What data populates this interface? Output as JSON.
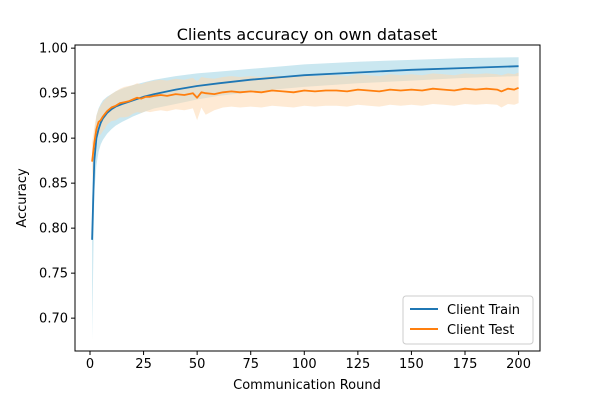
{
  "chart_data": {
    "type": "line",
    "title": "Clients accuracy on own dataset",
    "xlabel": "Communication Round",
    "ylabel": "Accuracy",
    "xlim": [
      -7,
      210
    ],
    "ylim": [
      0.6635,
      1.0035
    ],
    "xticks": [
      0,
      25,
      50,
      75,
      100,
      125,
      150,
      175,
      200
    ],
    "yticks": [
      0.7,
      0.75,
      0.8,
      0.85,
      0.9,
      0.95,
      1.0
    ],
    "ytick_labels": [
      "0.70",
      "0.75",
      "0.80",
      "0.85",
      "0.90",
      "0.95",
      "1.00"
    ],
    "grid": false,
    "legend_position": "lower-right",
    "series": [
      {
        "name": "Client Train",
        "color": "#1f77b4",
        "band_color": "#9fd4e4",
        "x": [
          1,
          2,
          3,
          4,
          5,
          6,
          8,
          10,
          12,
          15,
          20,
          25,
          30,
          40,
          50,
          60,
          75,
          90,
          100,
          125,
          150,
          175,
          200
        ],
        "y": [
          0.787,
          0.875,
          0.9,
          0.91,
          0.917,
          0.922,
          0.928,
          0.932,
          0.935,
          0.938,
          0.942,
          0.946,
          0.949,
          0.954,
          0.958,
          0.961,
          0.965,
          0.968,
          0.97,
          0.973,
          0.976,
          0.978,
          0.98
        ],
        "band_upper": [
          0.83,
          0.905,
          0.925,
          0.933,
          0.938,
          0.942,
          0.946,
          0.949,
          0.952,
          0.955,
          0.959,
          0.962,
          0.965,
          0.969,
          0.972,
          0.974,
          0.977,
          0.98,
          0.982,
          0.985,
          0.987,
          0.989,
          0.99
        ],
        "band_lower": [
          0.676,
          0.84,
          0.87,
          0.885,
          0.893,
          0.898,
          0.905,
          0.91,
          0.914,
          0.918,
          0.924,
          0.929,
          0.933,
          0.938,
          0.943,
          0.947,
          0.951,
          0.955,
          0.957,
          0.961,
          0.964,
          0.967,
          0.969
        ]
      },
      {
        "name": "Client Test",
        "color": "#ff7f0e",
        "band_color": "#fdd9b0",
        "x": [
          1,
          2,
          3,
          4,
          5,
          6,
          7,
          8,
          10,
          12,
          14,
          16,
          18,
          20,
          22,
          24,
          26,
          28,
          30,
          33,
          36,
          40,
          44,
          48,
          50,
          52,
          54,
          58,
          62,
          66,
          70,
          75,
          80,
          85,
          90,
          95,
          100,
          105,
          110,
          115,
          120,
          125,
          130,
          135,
          140,
          145,
          150,
          155,
          160,
          165,
          170,
          175,
          180,
          185,
          190,
          192,
          195,
          198,
          200
        ],
        "y": [
          0.874,
          0.895,
          0.91,
          0.918,
          0.92,
          0.924,
          0.927,
          0.93,
          0.934,
          0.936,
          0.939,
          0.94,
          0.941,
          0.943,
          0.945,
          0.944,
          0.946,
          0.946,
          0.947,
          0.948,
          0.947,
          0.949,
          0.948,
          0.95,
          0.945,
          0.951,
          0.95,
          0.949,
          0.951,
          0.952,
          0.951,
          0.952,
          0.951,
          0.953,
          0.952,
          0.951,
          0.953,
          0.952,
          0.953,
          0.953,
          0.952,
          0.954,
          0.953,
          0.952,
          0.954,
          0.953,
          0.954,
          0.953,
          0.955,
          0.954,
          0.953,
          0.955,
          0.954,
          0.955,
          0.954,
          0.952,
          0.955,
          0.954,
          0.956
        ],
        "band_upper": [
          0.895,
          0.912,
          0.925,
          0.932,
          0.936,
          0.94,
          0.943,
          0.945,
          0.949,
          0.952,
          0.955,
          0.957,
          0.958,
          0.959,
          0.961,
          0.96,
          0.962,
          0.963,
          0.964,
          0.965,
          0.964,
          0.966,
          0.965,
          0.967,
          0.963,
          0.968,
          0.967,
          0.966,
          0.968,
          0.969,
          0.968,
          0.969,
          0.968,
          0.97,
          0.969,
          0.968,
          0.97,
          0.969,
          0.97,
          0.97,
          0.969,
          0.971,
          0.97,
          0.969,
          0.971,
          0.97,
          0.971,
          0.97,
          0.972,
          0.971,
          0.97,
          0.972,
          0.971,
          0.972,
          0.971,
          0.97,
          0.972,
          0.971,
          0.973
        ],
        "band_lower": [
          0.853,
          0.878,
          0.895,
          0.904,
          0.904,
          0.908,
          0.911,
          0.915,
          0.919,
          0.92,
          0.923,
          0.923,
          0.924,
          0.927,
          0.929,
          0.928,
          0.93,
          0.929,
          0.93,
          0.931,
          0.93,
          0.932,
          0.931,
          0.933,
          0.92,
          0.934,
          0.926,
          0.931,
          0.934,
          0.935,
          0.934,
          0.935,
          0.934,
          0.936,
          0.935,
          0.934,
          0.936,
          0.935,
          0.936,
          0.936,
          0.935,
          0.937,
          0.936,
          0.935,
          0.937,
          0.936,
          0.937,
          0.936,
          0.938,
          0.937,
          0.936,
          0.938,
          0.937,
          0.938,
          0.937,
          0.934,
          0.938,
          0.937,
          0.939
        ]
      }
    ]
  }
}
